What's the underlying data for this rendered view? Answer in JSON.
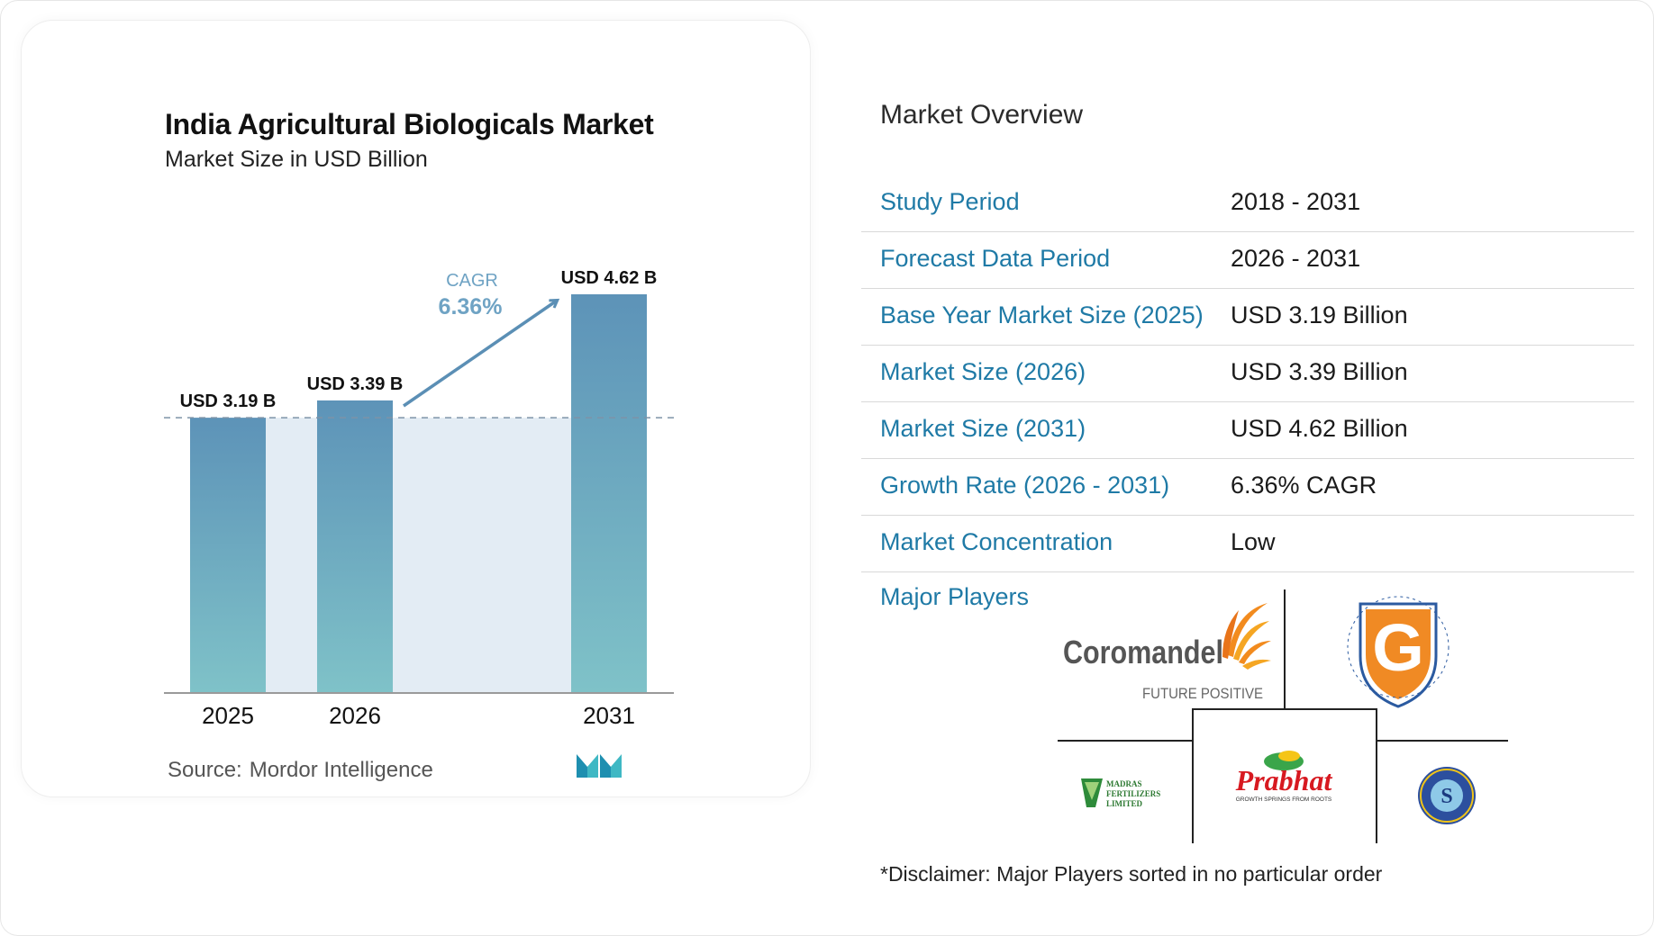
{
  "chart_data": {
    "type": "bar",
    "title": "India Agricultural Biologicals Market",
    "subtitle": "Market Size in USD Billion",
    "categories": [
      "2025",
      "2026",
      "2031"
    ],
    "values": [
      3.19,
      3.39,
      4.62
    ],
    "value_labels": [
      "USD 3.19 B",
      "USD 3.39 B",
      "USD 4.62 B"
    ],
    "cagr_label": "CAGR",
    "cagr_value": "6.36%",
    "colors": {
      "bar_top": "#5d93b8",
      "bar_bottom": "#7fc2c8",
      "band": "#e3ecf4",
      "arrow": "#5b8fb5",
      "cagr_text": "#6fa3c4"
    }
  },
  "source": {
    "label": "Source:",
    "value": "Mordor Intelligence"
  },
  "overview": {
    "title": "Market Overview",
    "rows": [
      {
        "label": "Study Period",
        "value": "2018 - 2031"
      },
      {
        "label": "Forecast Data Period",
        "value": "2026 - 2031"
      },
      {
        "label": "Base Year Market Size (2025)",
        "value": "USD 3.19 Billion"
      },
      {
        "label": "Market Size (2026)",
        "value": "USD 3.39 Billion"
      },
      {
        "label": "Market Size (2031)",
        "value": "USD 4.62 Billion"
      },
      {
        "label": "Growth Rate (2026 - 2031)",
        "value": "6.36% CAGR"
      },
      {
        "label": "Market Concentration",
        "value": "Low"
      }
    ],
    "label_color": "#1f7aa6"
  },
  "players": {
    "label": "Major Players",
    "logos": [
      {
        "name": "Coromandel",
        "tagline": "FUTURE POSITIVE"
      },
      {
        "name": "Gujarat State Fertilizers & Chemicals Limited",
        "letter": "G"
      },
      {
        "name": "Madras Fertilizers Limited",
        "line1": "MADRAS",
        "line2": "FERTILIZERS",
        "line3": "LIMITED"
      },
      {
        "name": "Prabhat",
        "tagline": "GROWTH SPRINGS FROM ROOTS"
      },
      {
        "name": "Swaroop Agrochemical Industries"
      }
    ],
    "disclaimer": "*Disclaimer: Major Players sorted in no particular order"
  }
}
